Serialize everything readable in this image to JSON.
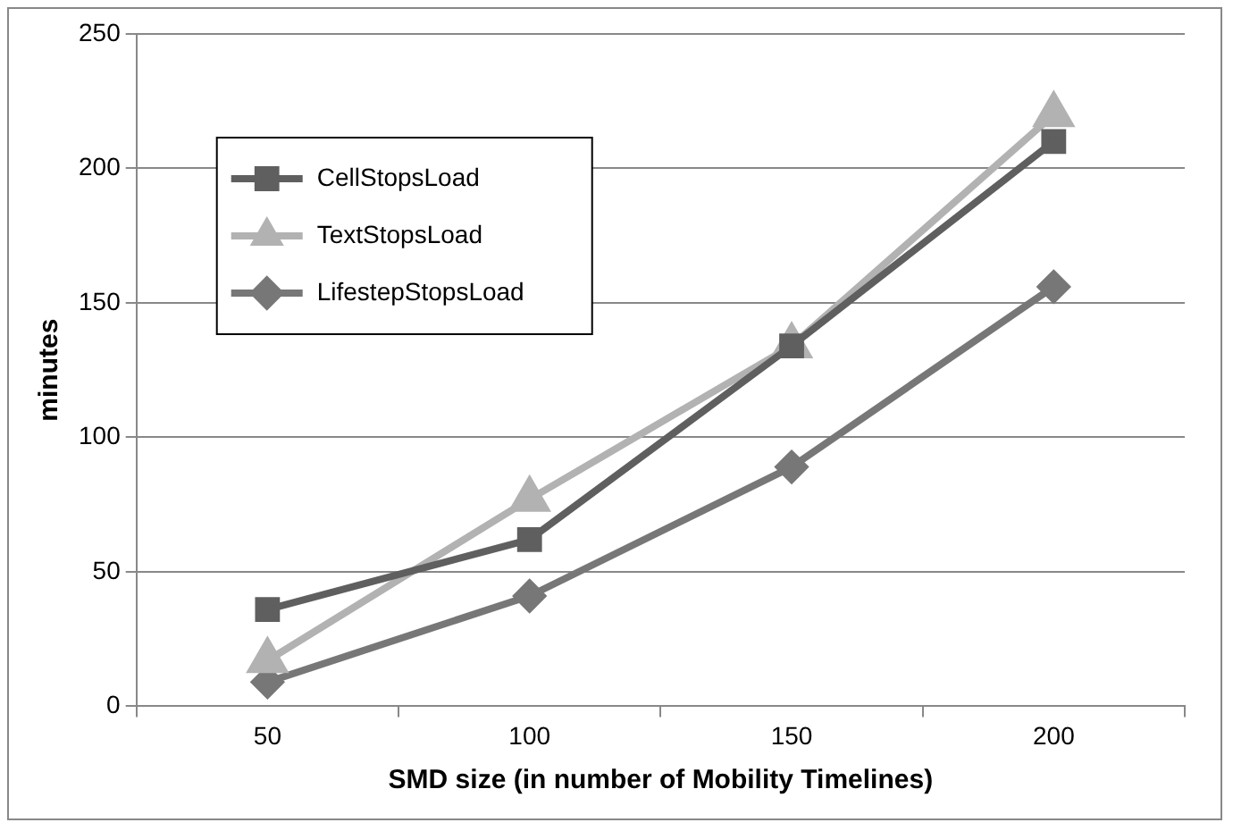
{
  "chart_data": {
    "type": "line",
    "xlabel": "SMD size (in number of Mobility Timelines)",
    "ylabel": "minutes",
    "categories": [
      "50",
      "100",
      "150",
      "200"
    ],
    "series": [
      {
        "name": "CellStopsLoad",
        "color": "#5f5f5f",
        "marker": "square",
        "values": [
          36,
          62,
          134,
          210
        ]
      },
      {
        "name": "TextStopsLoad",
        "color": "#b2b2b2",
        "marker": "triangle",
        "values": [
          17,
          77,
          134,
          220
        ]
      },
      {
        "name": "LifestepStopsLoad",
        "color": "#777777",
        "marker": "diamond",
        "values": [
          9,
          41,
          89,
          156
        ]
      }
    ],
    "ylim": [
      0,
      250
    ],
    "yticks": [
      0,
      50,
      100,
      150,
      200,
      250
    ],
    "grid": "y",
    "legend": "top left"
  }
}
